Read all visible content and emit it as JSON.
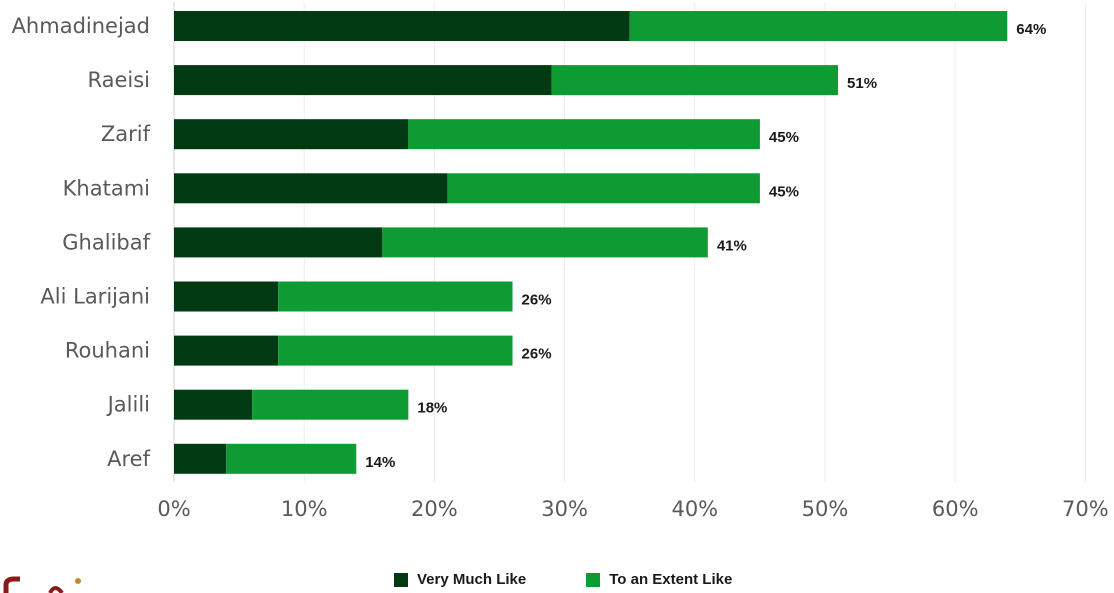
{
  "chart_data": {
    "type": "bar",
    "orientation": "horizontal",
    "stacked": true,
    "categories": [
      "Ahmadinejad",
      "Raeisi",
      "Zarif",
      "Khatami",
      "Ghalibaf",
      "Ali Larijani",
      "Rouhani",
      "Jalili",
      "Aref"
    ],
    "series": [
      {
        "name": "Very Much Like",
        "color": "#003a12",
        "values": [
          35,
          29,
          18,
          21,
          16,
          8,
          8,
          6,
          4
        ]
      },
      {
        "name": "To an Extent Like",
        "color": "#0f9b34",
        "values": [
          29,
          22,
          27,
          24,
          25,
          18,
          18,
          12,
          10
        ]
      }
    ],
    "totals": [
      64,
      51,
      45,
      45,
      41,
      26,
      26,
      18,
      14
    ],
    "total_labels": [
      "64%",
      "51%",
      "45%",
      "45%",
      "41%",
      "26%",
      "26%",
      "18%",
      "14%"
    ],
    "xlim": [
      0,
      70
    ],
    "x_ticks": [
      0,
      10,
      20,
      30,
      40,
      50,
      60,
      70
    ],
    "x_tick_labels": [
      "0%",
      "10%",
      "20%",
      "30%",
      "40%",
      "50%",
      "60%",
      "70%"
    ],
    "grid": true,
    "legend_position": "bottom",
    "title": "",
    "xlabel": "",
    "ylabel": ""
  },
  "legend": {
    "very_much_like": "Very Much Like",
    "to_an_extent_like": "To an Extent Like"
  }
}
